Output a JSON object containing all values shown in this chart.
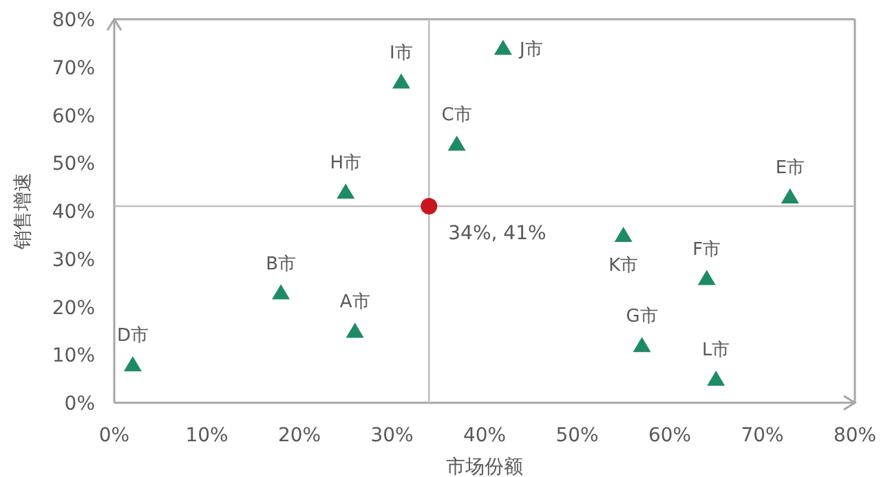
{
  "chart_data": {
    "type": "scatter",
    "xlabel": "市场份额",
    "ylabel": "销售增速",
    "series": [
      {
        "color": "#1f8a66",
        "marker": "triangle",
        "x": [
          26,
          18,
          37,
          2,
          73,
          64,
          57,
          25,
          31,
          42,
          55,
          65
        ],
        "values": [
          15,
          23,
          54,
          8,
          43,
          26,
          12,
          44,
          67,
          74,
          35,
          5
        ]
      },
      {
        "color": "#c8161d",
        "marker": "circle",
        "x": [
          34
        ],
        "values": [
          41
        ]
      }
    ],
    "xlim": [
      0,
      80
    ],
    "ylim": [
      0,
      80
    ],
    "xticks": [
      {
        "value": 0,
        "label": "0%"
      },
      {
        "value": 10,
        "label": "10%"
      },
      {
        "value": 20,
        "label": "20%"
      },
      {
        "value": 30,
        "label": "30%"
      },
      {
        "value": 40,
        "label": "40%"
      },
      {
        "value": 50,
        "label": "50%"
      },
      {
        "value": 60,
        "label": "60%"
      },
      {
        "value": 70,
        "label": "70%"
      },
      {
        "value": 80,
        "label": "80%"
      }
    ],
    "yticks": [
      {
        "value": 0,
        "label": "0%"
      },
      {
        "value": 10,
        "label": "10%"
      },
      {
        "value": 20,
        "label": "20%"
      },
      {
        "value": 30,
        "label": "30%"
      },
      {
        "value": 40,
        "label": "40%"
      },
      {
        "value": 50,
        "label": "50%"
      },
      {
        "value": 60,
        "label": "60%"
      },
      {
        "value": 70,
        "label": "70%"
      },
      {
        "value": 80,
        "label": "80%"
      }
    ],
    "ref_lines": [
      {
        "axis": "x",
        "value": 34,
        "color": "#bfbfbf"
      },
      {
        "axis": "y",
        "value": 41,
        "color": "#bfbfbf"
      }
    ],
    "annotations": [
      {
        "text": "A市",
        "x": 26,
        "y": 15
      },
      {
        "text": "B市",
        "x": 18,
        "y": 23
      },
      {
        "text": "C市",
        "x": 37,
        "y": 54
      },
      {
        "text": "D市",
        "x": 2,
        "y": 8
      },
      {
        "text": "E市",
        "x": 73,
        "y": 43
      },
      {
        "text": "F市",
        "x": 64,
        "y": 26
      },
      {
        "text": "G市",
        "x": 57,
        "y": 12
      },
      {
        "text": "H市",
        "x": 25,
        "y": 44
      },
      {
        "text": "I市",
        "x": 31,
        "y": 67
      },
      {
        "text": "J市",
        "x": 42,
        "y": 74
      },
      {
        "text": "K市",
        "x": 55,
        "y": 35
      },
      {
        "text": "L市",
        "x": 65,
        "y": 5
      },
      {
        "text": "34%, 41%",
        "x": 34,
        "y": 41
      }
    ]
  }
}
